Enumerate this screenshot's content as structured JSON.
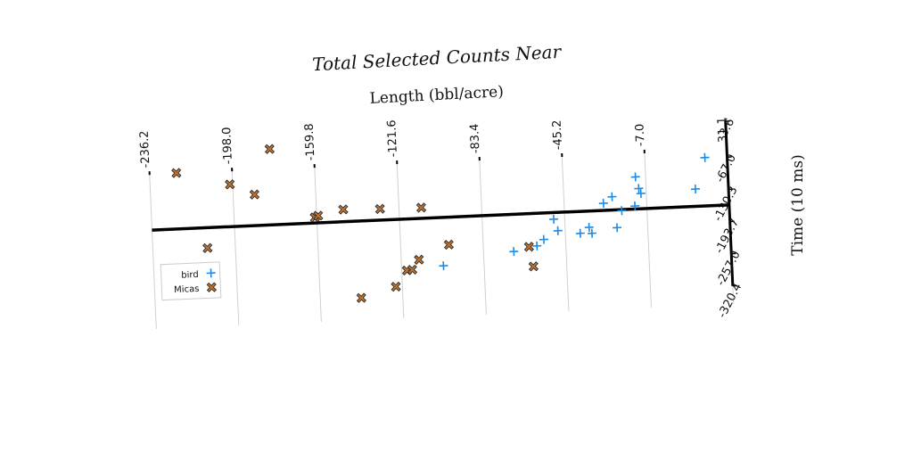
{
  "chart_data": {
    "type": "scatter",
    "title": "Total Selected Counts Near",
    "x_label": "Length (bbl/acre)",
    "y_label": "Time (10 ms)",
    "xlim": [
      -236.2,
      31.1
    ],
    "ylim": [
      -320.4,
      3.6
    ],
    "xticks": [
      -236.2,
      {
        "value": -198,
        "label": "-198.0"
      },
      -159.8,
      -121.6,
      -83.4,
      -45.2,
      {
        "value": -7,
        "label": "-7.0"
      },
      31.1
    ],
    "yticks": [
      3.6,
      {
        "value": -67,
        "label": "-67.0"
      },
      -130.3,
      -193.7,
      {
        "value": -257,
        "label": "-257.0"
      },
      -320.4
    ],
    "grid": true,
    "legend": "lower left",
    "reference_line": -161,
    "series": [
      {
        "name": "bird",
        "color": "#1e88e5",
        "marker": "plus",
        "x": [
          -102.2,
          -69.4,
          -58.6,
          -55.3,
          -50.3,
          -48.6,
          -38.3,
          -34.1,
          -32.9,
          -27.0,
          -22.9,
          -21.2,
          -18.7,
          -12.5,
          -11.7,
          -10.4,
          -9.5,
          15.8,
          20.8
        ],
        "values": [
          -256,
          -234,
          -225,
          -213,
          -174,
          -197,
          -204,
          -193,
          -205,
          -147,
          -135,
          -196,
          -163,
          -155,
          -98,
          -121,
          -131,
          -127,
          -66
        ]
      },
      {
        "name": "Micas",
        "color": "#b87333",
        "marker": "x",
        "x": [
          -223.8,
          -210.9,
          -199.3,
          -188.1,
          -180.2,
          -160.7,
          -159.1,
          -147.4,
          -140.8,
          -130.4,
          -124.6,
          -119.2,
          -116.7,
          -113.4,
          -111.3,
          -99.3,
          -62.3,
          -60.6
        ],
        "values": [
          -51,
          -201,
          -78,
          -100,
          -12,
          -150,
          -147,
          -137,
          -312,
          -139,
          -293,
          -262,
          -261,
          -242,
          -140,
          -215,
          -226,
          -265
        ]
      }
    ]
  }
}
